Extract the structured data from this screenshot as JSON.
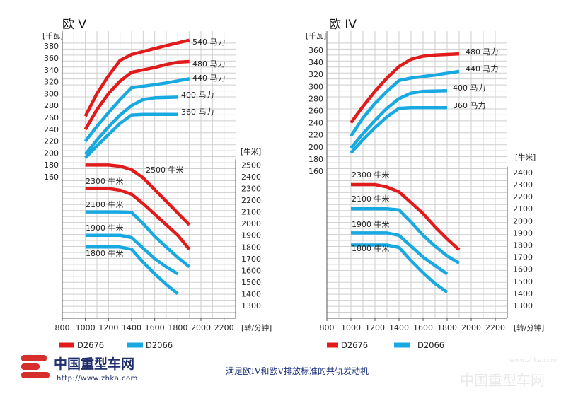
{
  "colors": {
    "d2676": "#e11b1b",
    "d2066": "#19a9e1"
  },
  "legend": [
    {
      "label": "D2676",
      "color": "#e11b1b"
    },
    {
      "label": "D2066",
      "color": "#19a9e1"
    }
  ],
  "caption": "满足欧IV和欧Ⅴ排放标准的共轨发动机",
  "logo": {
    "name": "中国重型车网",
    "url": "http://www.zhka.com",
    "watermark": "中国重型车网",
    "watermark_url": "www.zhka.com"
  },
  "chart_data": [
    {
      "type": "line",
      "title": "欧 V",
      "xlabel": "[转/分钟]",
      "x_ticks": [
        800,
        1000,
        1200,
        1400,
        1600,
        1800,
        2000,
        2200
      ],
      "xlim": [
        800,
        2300
      ],
      "power": {
        "ylabel": "[千瓦]",
        "y_ticks": [
          160,
          180,
          200,
          220,
          240,
          260,
          280,
          300,
          320,
          340,
          360,
          380
        ],
        "series": [
          {
            "name": "540 马力",
            "engine": "D2676",
            "x": [
              1000,
              1100,
              1200,
              1300,
              1400,
              1600,
              1700,
              1900
            ],
            "y": [
              262,
              300,
              330,
              356,
              366,
              376,
              381,
              390
            ]
          },
          {
            "name": "480 马力",
            "engine": "D2676",
            "x": [
              1000,
              1100,
              1200,
              1300,
              1400,
              1600,
              1700,
              1800,
              1900
            ],
            "y": [
              240,
              273,
              300,
              321,
              336,
              344,
              349,
              353,
              354
            ]
          },
          {
            "name": "440 马力",
            "engine": "D2066",
            "x": [
              1000,
              1100,
              1200,
              1300,
              1400,
              1600,
              1700,
              1900
            ],
            "y": [
              220,
              245,
              268,
              290,
              310,
              315,
              318,
              325
            ]
          },
          {
            "name": "400 马力",
            "engine": "D2066",
            "x": [
              1000,
              1100,
              1200,
              1300,
              1400,
              1500,
              1600,
              1800
            ],
            "y": [
              198,
              222,
              244,
              264,
              280,
              290,
              293,
              294
            ]
          },
          {
            "name": "360 马力",
            "engine": "D2066",
            "x": [
              1000,
              1100,
              1200,
              1300,
              1400,
              1500,
              1600,
              1800
            ],
            "y": [
              192,
              212,
              231,
              250,
              264,
              265,
              265,
              265
            ]
          }
        ]
      },
      "torque": {
        "ylabel": "[牛米]",
        "y_ticks": [
          1300,
          1400,
          1500,
          1600,
          1700,
          1800,
          1900,
          2000,
          2100,
          2200,
          2300,
          2400,
          2500
        ],
        "series": [
          {
            "name": "2500 牛米",
            "engine": "D2676",
            "x": [
              1000,
              1200,
              1300,
              1400,
              1500,
              1600,
              1700,
              1800,
              1900
            ],
            "y": [
              2500,
              2500,
              2490,
              2460,
              2390,
              2290,
              2190,
              2090,
              1990
            ]
          },
          {
            "name": "2300 牛米",
            "engine": "D2676",
            "x": [
              1000,
              1200,
              1300,
              1400,
              1500,
              1600,
              1700,
              1800,
              1900
            ],
            "y": [
              2300,
              2300,
              2285,
              2250,
              2170,
              2080,
              1990,
              1900,
              1780
            ]
          },
          {
            "name": "2100 牛米",
            "engine": "D2066",
            "x": [
              1000,
              1200,
              1300,
              1400,
              1500,
              1600,
              1700,
              1800,
              1900
            ],
            "y": [
              2100,
              2100,
              2100,
              2095,
              2000,
              1890,
              1800,
              1710,
              1630
            ]
          },
          {
            "name": "1900 牛米",
            "engine": "D2066",
            "x": [
              1000,
              1200,
              1300,
              1400,
              1500,
              1600,
              1700,
              1800
            ],
            "y": [
              1900,
              1900,
              1900,
              1880,
              1790,
              1700,
              1630,
              1570
            ]
          },
          {
            "name": "1800 牛米",
            "engine": "D2066",
            "x": [
              1000,
              1200,
              1300,
              1400,
              1500,
              1600,
              1700,
              1800
            ],
            "y": [
              1800,
              1800,
              1800,
              1780,
              1670,
              1570,
              1480,
              1400
            ]
          }
        ]
      }
    },
    {
      "type": "line",
      "title": "欧 IV",
      "xlabel": "[转/分钟]",
      "x_ticks": [
        800,
        1000,
        1200,
        1400,
        1600,
        1800,
        2000,
        2200
      ],
      "xlim": [
        800,
        2300
      ],
      "power": {
        "ylabel": "[千瓦]",
        "y_ticks": [
          160,
          180,
          200,
          220,
          240,
          260,
          280,
          300,
          320,
          340,
          360
        ],
        "series": [
          {
            "name": "480 马力",
            "engine": "D2676",
            "x": [
              1000,
              1100,
              1200,
              1300,
              1400,
              1500,
              1600,
              1700,
              1800,
              1900
            ],
            "y": [
              240,
              267,
              292,
              314,
              333,
              345,
              350,
              352,
              353,
              354
            ]
          },
          {
            "name": "440 马力",
            "engine": "D2066",
            "x": [
              1000,
              1100,
              1200,
              1300,
              1400,
              1500,
              1700,
              1900
            ],
            "y": [
              218,
              248,
              272,
              292,
              310,
              314,
              319,
              325
            ]
          },
          {
            "name": "400 马力",
            "engine": "D2066",
            "x": [
              1000,
              1100,
              1200,
              1300,
              1400,
              1500,
              1600,
              1800
            ],
            "y": [
              198,
              222,
              244,
              264,
              280,
              289,
              292,
              293
            ]
          },
          {
            "name": "360 马力",
            "engine": "D2066",
            "x": [
              1000,
              1100,
              1200,
              1300,
              1400,
              1500,
              1600,
              1800
            ],
            "y": [
              190,
              212,
              232,
              250,
              264,
              265,
              265,
              265
            ]
          }
        ]
      },
      "torque": {
        "ylabel": "[牛米]",
        "y_ticks": [
          1300,
          1400,
          1500,
          1600,
          1700,
          1800,
          1900,
          2000,
          2100,
          2200,
          2300,
          2400
        ],
        "series": [
          {
            "name": "2300 牛米",
            "engine": "D2676",
            "x": [
              1000,
              1200,
              1300,
              1400,
              1500,
              1600,
              1700,
              1800,
              1900
            ],
            "y": [
              2300,
              2300,
              2280,
              2240,
              2150,
              2060,
              1950,
              1850,
              1760
            ]
          },
          {
            "name": "2100 牛米",
            "engine": "D2066",
            "x": [
              1000,
              1200,
              1300,
              1400,
              1500,
              1600,
              1700,
              1800,
              1900
            ],
            "y": [
              2100,
              2100,
              2100,
              2090,
              1990,
              1880,
              1790,
              1710,
              1650
            ]
          },
          {
            "name": "1900 牛米",
            "engine": "D2066",
            "x": [
              1000,
              1200,
              1300,
              1400,
              1500,
              1600,
              1700,
              1800
            ],
            "y": [
              1900,
              1900,
              1900,
              1880,
              1790,
              1700,
              1630,
              1560
            ]
          },
          {
            "name": "1800 牛米",
            "engine": "D2066",
            "x": [
              1000,
              1200,
              1300,
              1400,
              1500,
              1600,
              1700,
              1800
            ],
            "y": [
              1800,
              1800,
              1800,
              1780,
              1670,
              1570,
              1480,
              1410
            ]
          }
        ]
      }
    }
  ]
}
